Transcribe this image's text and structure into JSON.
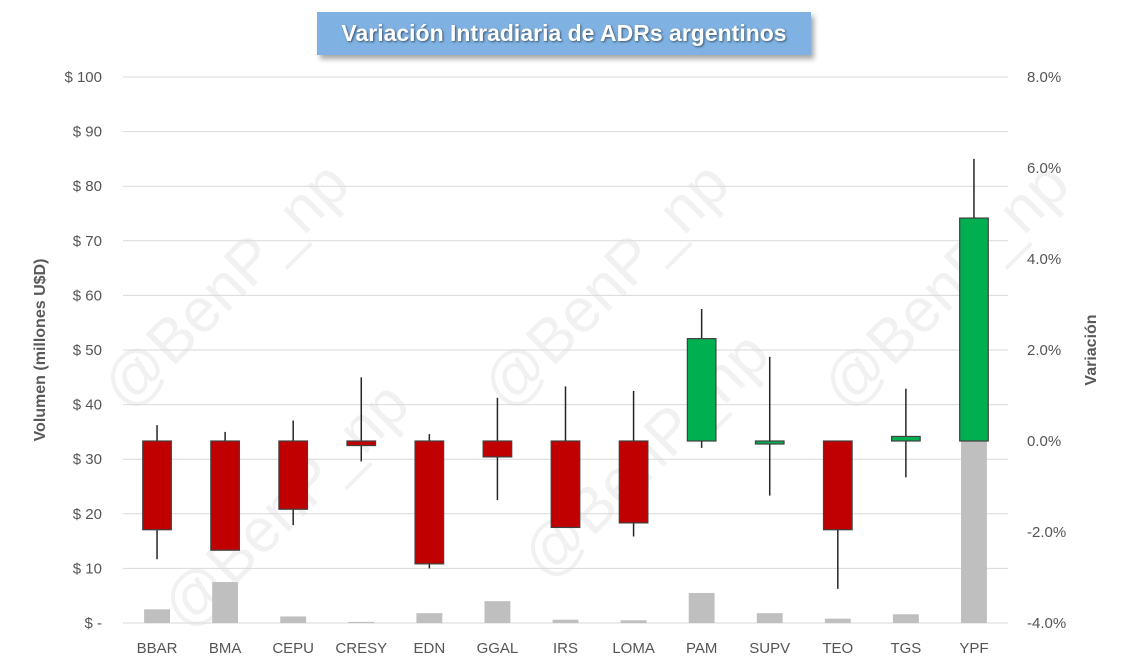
{
  "chart_data": {
    "type": "candlestick",
    "title": "Variación Intradiaria de ADRs argentinos",
    "ylabel_left": "Volumen (millones U$D)",
    "ylabel_right": "Variación",
    "left_axis": {
      "ylim": [
        0,
        100
      ],
      "ticks": [
        0,
        10,
        20,
        30,
        40,
        50,
        60,
        70,
        80,
        90,
        100
      ],
      "tick_labels": [
        "$ -",
        "$ 10",
        "$ 20",
        "$ 30",
        "$ 40",
        "$ 50",
        "$ 60",
        "$ 70",
        "$ 80",
        "$ 90",
        "$ 100"
      ]
    },
    "right_axis": {
      "ylim": [
        -4.0,
        8.0
      ],
      "ticks": [
        -4,
        -2,
        0,
        2,
        4,
        6,
        8
      ],
      "tick_labels": [
        "-4.0%",
        "-2.0%",
        "0.0%",
        "2.0%",
        "4.0%",
        "6.0%",
        "8.0%"
      ]
    },
    "categories": [
      "BBAR",
      "BMA",
      "CEPU",
      "CRESY",
      "EDN",
      "GGAL",
      "IRS",
      "LOMA",
      "PAM",
      "SUPV",
      "TEO",
      "TGS",
      "YPF"
    ],
    "volume_musd": [
      2.5,
      7.5,
      1.2,
      0.2,
      1.8,
      4.0,
      0.6,
      0.5,
      5.5,
      1.8,
      0.8,
      1.6,
      33.5
    ],
    "open_pct": [
      0,
      0,
      0,
      0,
      0,
      0,
      0,
      0,
      0,
      0,
      0,
      0,
      0
    ],
    "close_pct": [
      -1.95,
      -2.4,
      -1.5,
      -0.1,
      -2.7,
      -0.35,
      -1.9,
      -1.8,
      2.25,
      0.0,
      -1.95,
      0.1,
      4.9
    ],
    "high_pct": [
      0.35,
      0.2,
      0.45,
      1.4,
      0.15,
      0.95,
      1.2,
      1.1,
      2.9,
      1.85,
      0.0,
      1.15,
      6.2
    ],
    "low_pct": [
      -2.6,
      -2.4,
      -1.85,
      -0.45,
      -2.8,
      -1.3,
      -1.9,
      -2.1,
      -0.15,
      -1.2,
      -3.25,
      -0.8,
      0.0
    ],
    "colors": {
      "up": "#00b050",
      "down": "#c00000",
      "volume": "#bfbfbf",
      "grid": "#d9d9d9"
    },
    "watermark": "@BenP_np",
    "legend": "none",
    "grid": true
  }
}
